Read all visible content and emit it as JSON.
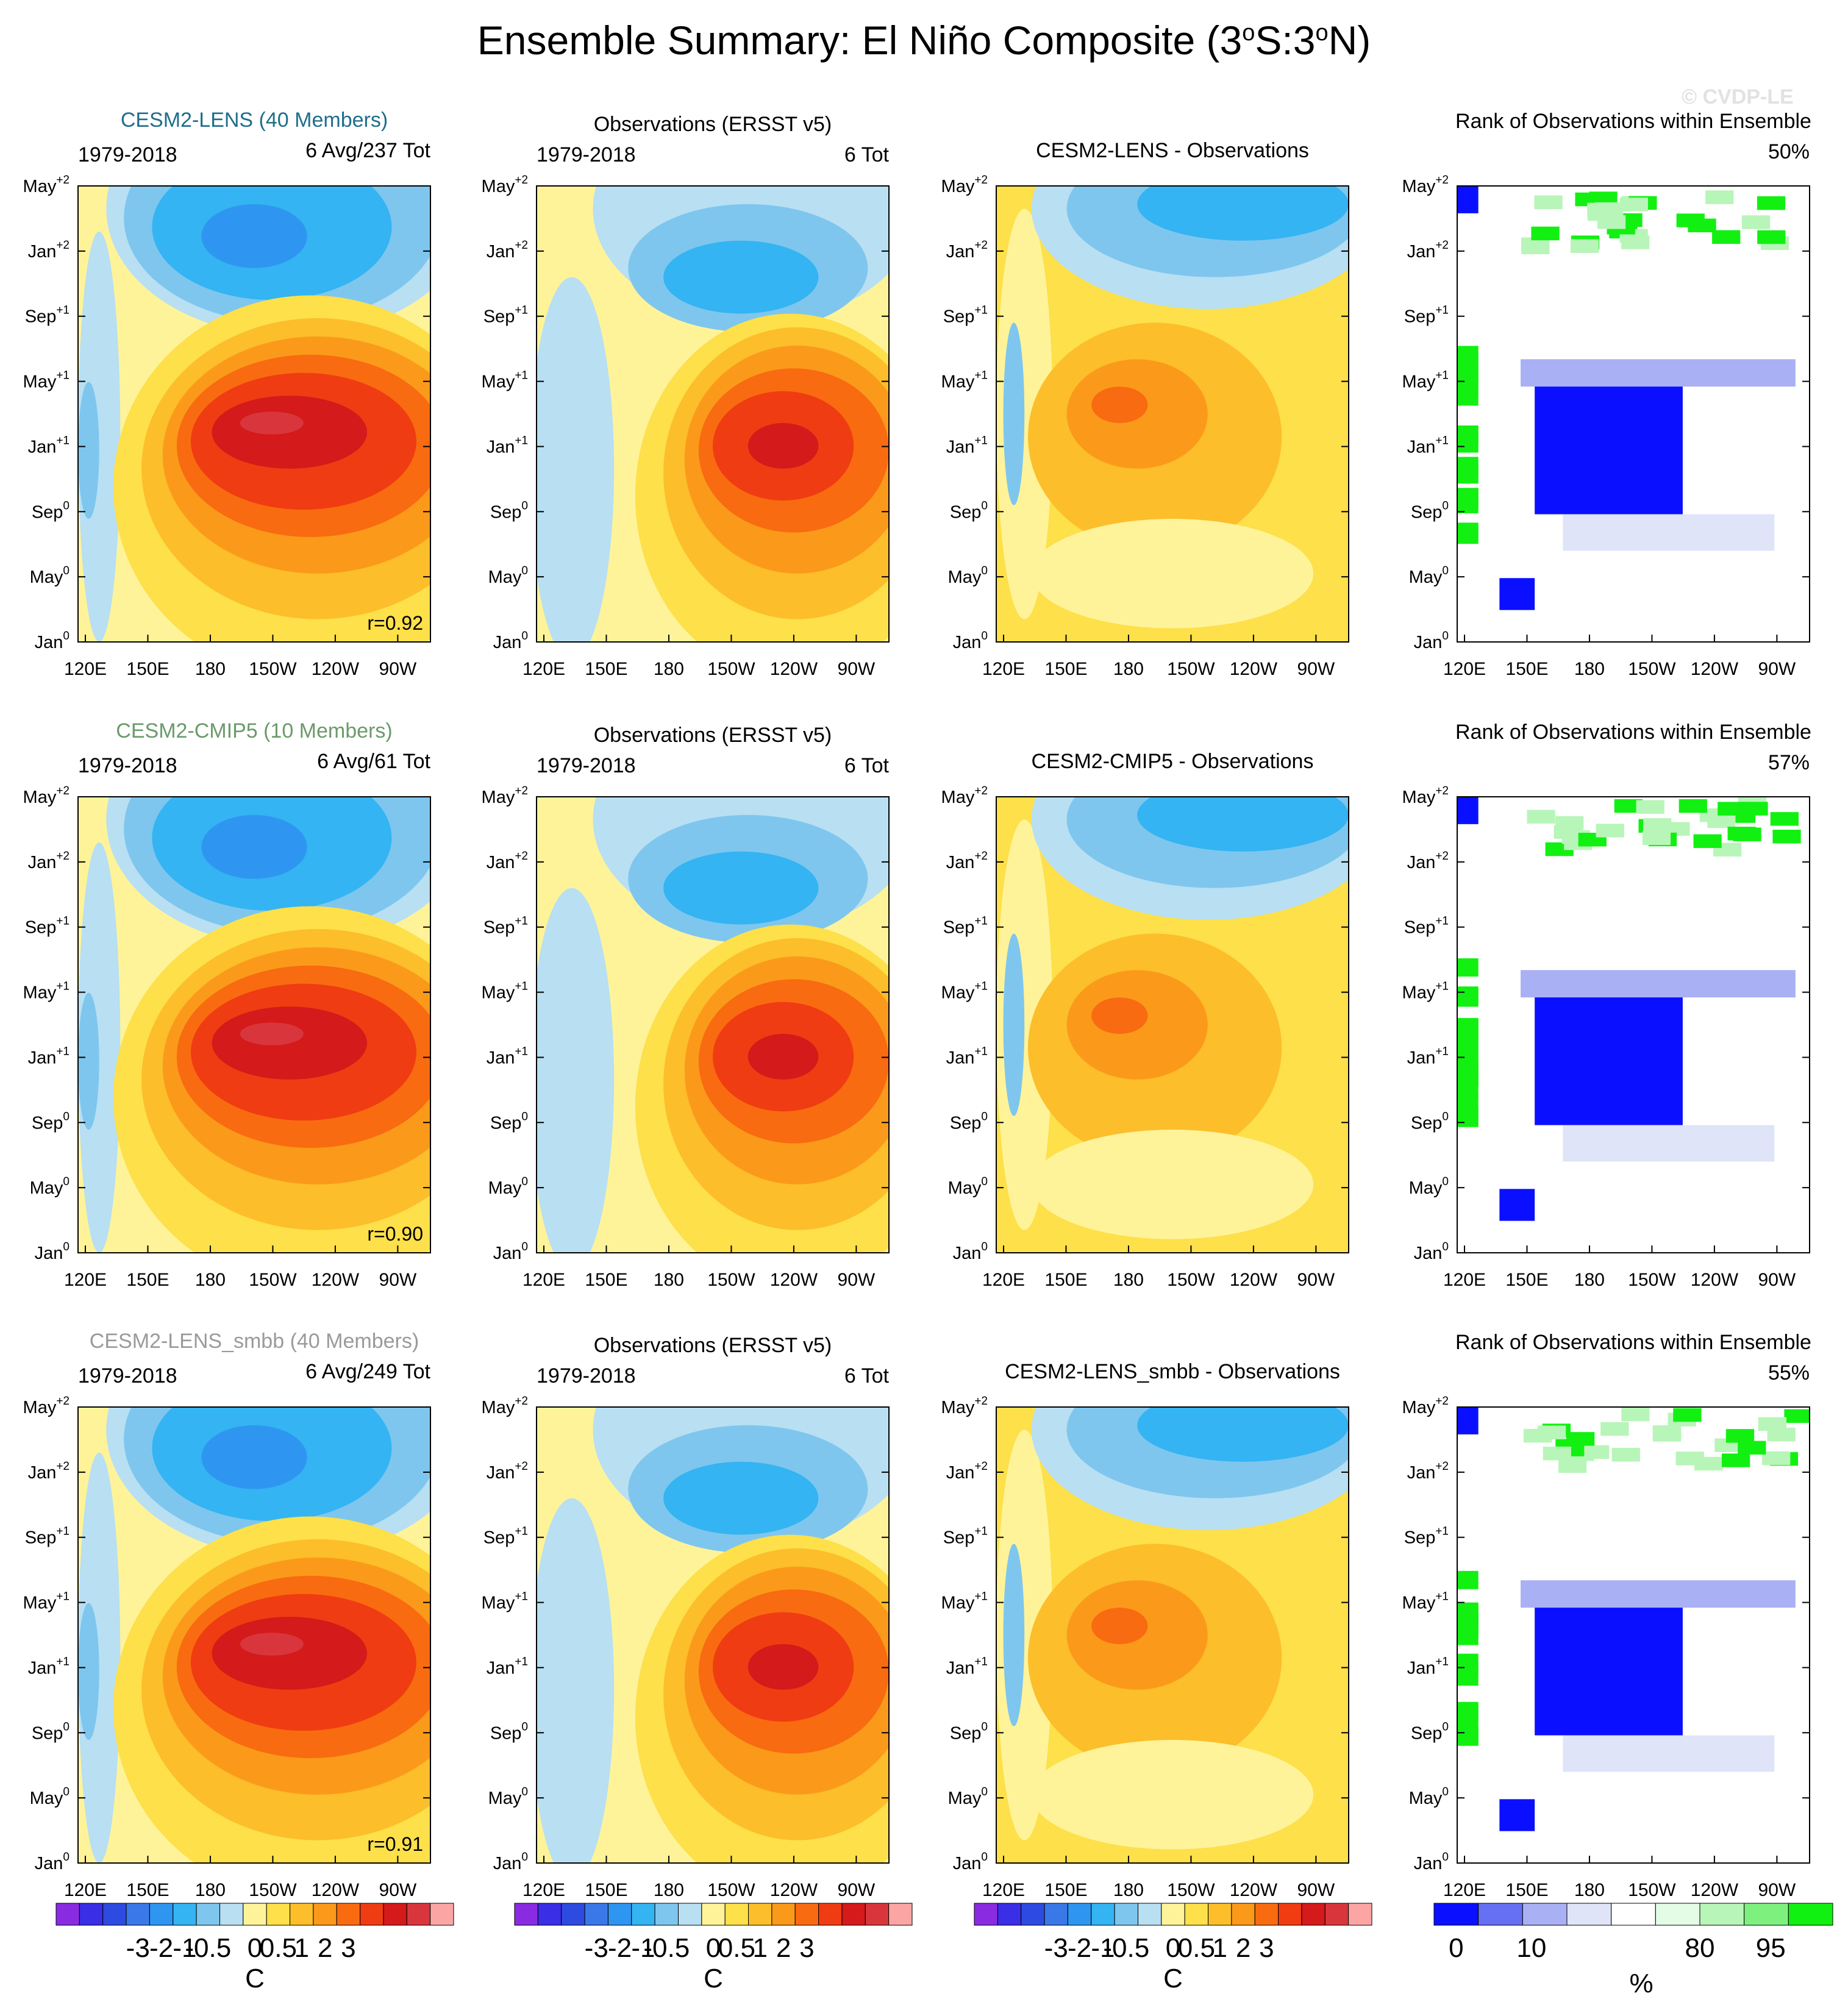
{
  "title_main": "Ensemble Summary: El Niño Composite (3",
  "title_sup1": "o",
  "title_mid": "S:3",
  "title_sup2": "o",
  "title_end": "N)",
  "watermark": "© CVDP-LE",
  "y_tick_labels": [
    {
      "base": "Jan",
      "sup": "0"
    },
    {
      "base": "May",
      "sup": "0"
    },
    {
      "base": "Sep",
      "sup": "0"
    },
    {
      "base": "Jan",
      "sup": "+1"
    },
    {
      "base": "May",
      "sup": "+1"
    },
    {
      "base": "Sep",
      "sup": "+1"
    },
    {
      "base": "Jan",
      "sup": "+2"
    },
    {
      "base": "May",
      "sup": "+2"
    }
  ],
  "x_tick_labels": [
    "120E",
    "150E",
    "180",
    "150W",
    "120W",
    "90W"
  ],
  "rows": [
    {
      "model_title": "CESM2-LENS (40 Members)",
      "model_color": "#1f6e8c",
      "model_period": "1979-2018",
      "model_count": "6 Avg/237 Tot",
      "model_corr": "r=0.92",
      "obs_title": "Observations (ERSST v5)",
      "obs_period": "1979-2018",
      "obs_count": "6 Tot",
      "diff_title": "CESM2-LENS - Observations",
      "rank_title": "Rank of Observations within Ensemble",
      "rank_pct": "50%"
    },
    {
      "model_title": "CESM2-CMIP5 (10 Members)",
      "model_color": "#6b9a6b",
      "model_period": "1979-2018",
      "model_count": "6 Avg/61 Tot",
      "model_corr": "r=0.90",
      "obs_title": "Observations (ERSST v5)",
      "obs_period": "1979-2018",
      "obs_count": "6 Tot",
      "diff_title": "CESM2-CMIP5 - Observations",
      "rank_title": "Rank of Observations within Ensemble",
      "rank_pct": "57%"
    },
    {
      "model_title": "CESM2-LENS_smbb (40 Members)",
      "model_color": "#9a9a9a",
      "model_period": "1979-2018",
      "model_count": "6 Avg/249 Tot",
      "model_corr": "r=0.91",
      "obs_title": "Observations (ERSST v5)",
      "obs_period": "1979-2018",
      "obs_count": "6 Tot",
      "diff_title": "CESM2-LENS_smbb - Observations",
      "rank_title": "Rank of Observations within Ensemble",
      "rank_pct": "55%"
    }
  ],
  "colorbar_sst": {
    "labels": [
      "-3",
      "-2",
      "-1",
      "-0.5",
      "0",
      "0.5",
      "1",
      "2",
      "3"
    ],
    "unit": "C",
    "colors": [
      "#8a2be2",
      "#3a2ee6",
      "#2d4be0",
      "#3a78e8",
      "#2e96f0",
      "#34b4f2",
      "#7ec6ee",
      "#b8dff2",
      "#fff39a",
      "#fde04a",
      "#fcbe2a",
      "#fb9a1a",
      "#f96b10",
      "#f03c12",
      "#d41a1a",
      "#d8363c",
      "#fca5a5"
    ]
  },
  "colorbar_rank": {
    "labels": [
      "0",
      "10",
      "80",
      "95"
    ],
    "unit": "%",
    "colors": [
      "#0a10ff",
      "#6670f4",
      "#aab0f4",
      "#e0e4f8",
      "#ffffff",
      "#e4fbe6",
      "#b8f5b8",
      "#7ef07e",
      "#12f012"
    ]
  },
  "chart_data": {
    "type": "heatmap",
    "title": "Ensemble Summary: El Niño Composite (3°S:3°N)",
    "x_axis": {
      "ticks": [
        "120E",
        "150E",
        "180",
        "150W",
        "120W",
        "90W"
      ]
    },
    "y_axis": {
      "ticks": [
        "Jan0",
        "May0",
        "Sep0",
        "Jan+1",
        "May+1",
        "Sep+1",
        "Jan+2",
        "May+2"
      ]
    },
    "sst_levels": [
      -3,
      -2,
      -1,
      -0.5,
      0,
      0.5,
      1,
      2,
      3
    ],
    "sst_unit": "C",
    "rank_levels": [
      0,
      10,
      80,
      95
    ],
    "rank_unit": "%",
    "panels": [
      {
        "row": "CESM2-LENS",
        "correlation": 0.92,
        "rank_of_obs_pct": 50
      },
      {
        "row": "CESM2-CMIP5",
        "correlation": 0.9,
        "rank_of_obs_pct": 57
      },
      {
        "row": "CESM2-LENS_smbb",
        "correlation": 0.91,
        "rank_of_obs_pct": 55
      }
    ]
  }
}
